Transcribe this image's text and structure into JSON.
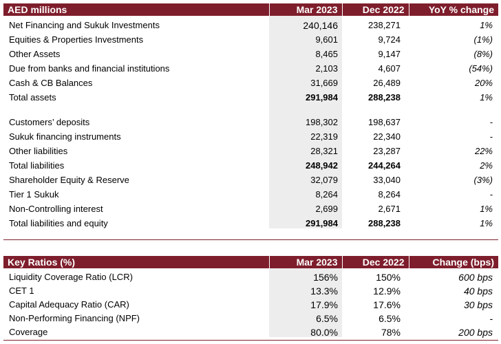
{
  "balance": {
    "headers": [
      "AED millions",
      "Mar 2023",
      "Dec 2022",
      "YoY % change"
    ],
    "assets": [
      {
        "label": "Net Financing and Sukuk Investments",
        "mar": "240,146",
        "dec": "238,271",
        "chg": "1%"
      },
      {
        "label": "Equities & Properties Investments",
        "mar": "9,601",
        "dec": "9,724",
        "chg": "(1%)"
      },
      {
        "label": "Other Assets",
        "mar": "8,465",
        "dec": "9,147",
        "chg": "(8%)"
      },
      {
        "label": "Due from banks and financial institutions",
        "mar": "2,103",
        "dec": "4,607",
        "chg": "(54%)"
      },
      {
        "label": "Cash & CB Balances",
        "mar": "31,669",
        "dec": "26,489",
        "chg": "20%"
      },
      {
        "label": "Total assets",
        "mar": "291,984",
        "dec": "288,238",
        "chg": "1%"
      }
    ],
    "liabilities": [
      {
        "label": "Customers’ deposits",
        "mar": "198,302",
        "dec": "198,637",
        "chg": "-"
      },
      {
        "label": "Sukuk financing instruments",
        "mar": "22,319",
        "dec": "22,340",
        "chg": "-"
      },
      {
        "label": "Other liabilities",
        "mar": "28,321",
        "dec": "23,287",
        "chg": "22%"
      },
      {
        "label": "Total liabilities",
        "mar": "248,942",
        "dec": "244,264",
        "chg": "2%"
      },
      {
        "label": "Shareholder Equity & Reserve",
        "mar": "32,079",
        "dec": "33,040",
        "chg": "(3%)"
      },
      {
        "label": "Tier 1 Sukuk",
        "mar": "8,264",
        "dec": "8,264",
        "chg": "-"
      },
      {
        "label": "Non-Controlling interest",
        "mar": "2,699",
        "dec": "2,671",
        "chg": "1%"
      },
      {
        "label": "Total liabilities and equity",
        "mar": "291,984",
        "dec": "288,238",
        "chg": "1%"
      }
    ]
  },
  "ratios": {
    "headers": [
      "Key Ratios (%)",
      "Mar 2023",
      "Dec 2022",
      "Change (bps)"
    ],
    "rows": [
      {
        "label": "Liquidity Coverage Ratio (LCR)",
        "mar": "156%",
        "dec": "150%",
        "chg": "600 bps"
      },
      {
        "label": "CET 1",
        "mar": "13.3%",
        "dec": "12.9%",
        "chg": "40 bps"
      },
      {
        "label": "Capital Adequacy Ratio (CAR)",
        "mar": "17.9%",
        "dec": "17.6%",
        "chg": "30 bps"
      },
      {
        "label": "Non-Performing Financing (NPF)",
        "mar": "6.5%",
        "dec": "6.5%",
        "chg": "-"
      },
      {
        "label": "Coverage",
        "mar": "80.0%",
        "dec": "78%",
        "chg": "200 bps"
      }
    ]
  },
  "colors": {
    "header_bg": "#7e1e2c",
    "header_text": "#ffffff",
    "shade": "#ededed"
  }
}
